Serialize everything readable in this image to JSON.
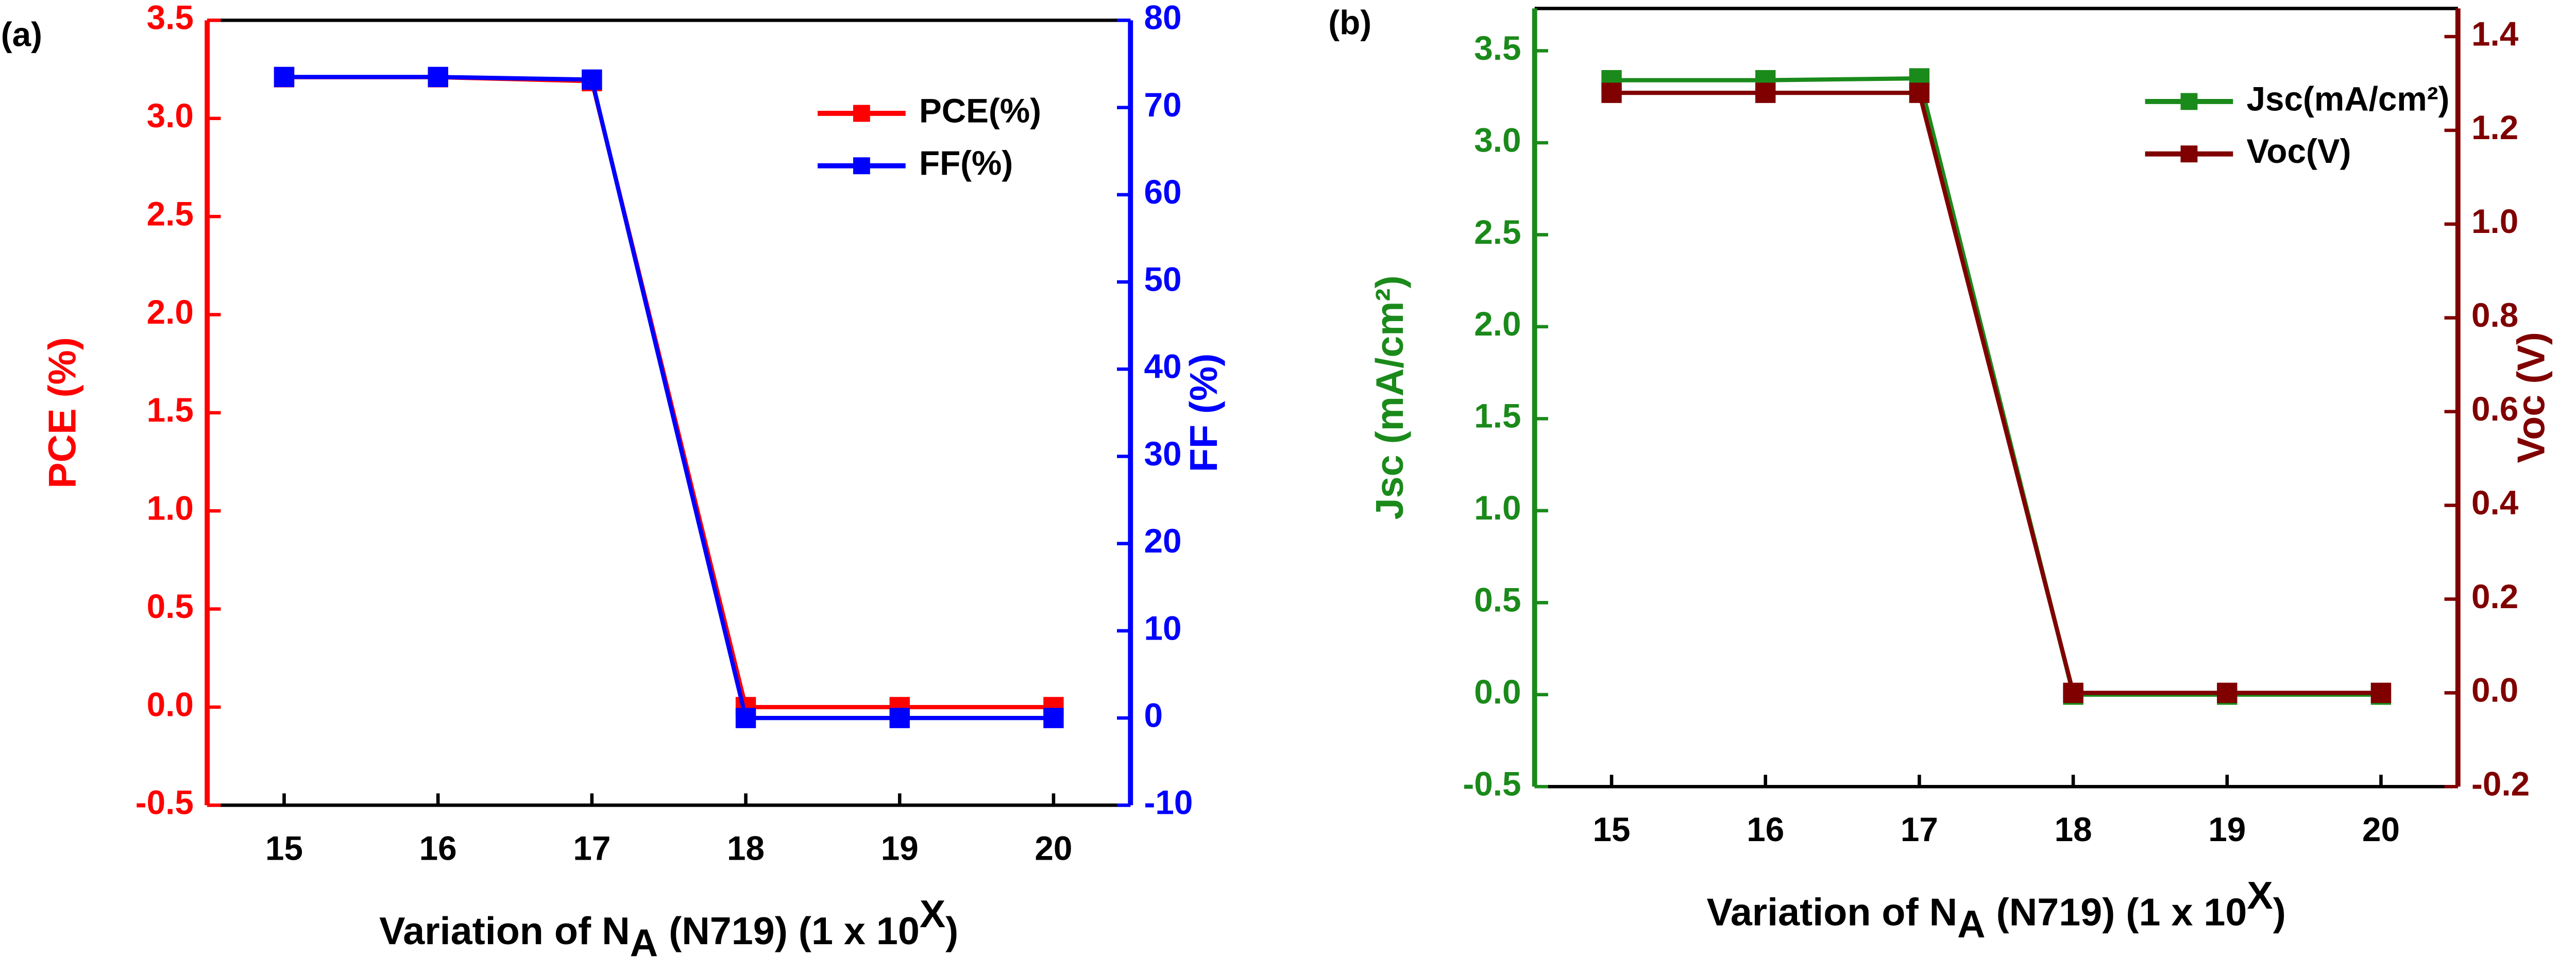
{
  "chart_data": [
    {
      "type": "line",
      "panel_label": "(a)",
      "xlabel": {
        "main": "Variation of N",
        "sub": "A",
        "rest": " (N719) (1 x 10",
        "sup": "X",
        "end": ")"
      },
      "ylabel": "PCE (%)",
      "y2label": "FF (%)",
      "x": [
        15,
        16,
        17,
        18,
        19,
        20
      ],
      "xlim": [
        14.5,
        20.5
      ],
      "xticks": [
        15,
        16,
        17,
        18,
        19,
        20
      ],
      "ylim": [
        -0.5,
        3.5
      ],
      "yticks": [
        -0.5,
        {
          "value": 0,
          "label": "0.0"
        },
        0.5,
        {
          "value": 1,
          "label": "1.0"
        },
        1.5,
        {
          "value": 2,
          "label": "2.0"
        },
        2.5,
        {
          "value": 3,
          "label": "3.0"
        },
        3.5
      ],
      "y2lim": [
        -10,
        80
      ],
      "y2ticks": [
        -10,
        0,
        10,
        20,
        30,
        40,
        50,
        60,
        70,
        80
      ],
      "legend": "upper right",
      "series": [
        {
          "name": "PCE(%)",
          "color": "#ff0000",
          "values": [
            3.21,
            3.21,
            3.19,
            0,
            0,
            0
          ]
        },
        {
          "name": "FF(%)",
          "color": "#0000ff",
          "axis": "y2",
          "values": [
            73.5,
            73.5,
            73.2,
            0,
            0,
            0
          ]
        }
      ]
    },
    {
      "type": "line",
      "panel_label": "(b)",
      "xlabel": {
        "main": "Variation of N",
        "sub": "A",
        "rest": " (N719) (1 x 10",
        "sup": "X",
        "end": ")"
      },
      "ylabel": "Jsc (mA/cm²)",
      "y2label": "Voc (V)",
      "x": [
        15,
        16,
        17,
        18,
        19,
        20
      ],
      "xlim": [
        14.5,
        20.5
      ],
      "xticks": [
        15,
        16,
        17,
        18,
        19,
        20
      ],
      "ylim": [
        -0.5,
        3.73
      ],
      "yticks": [
        -0.5,
        {
          "value": 0,
          "label": "0.0"
        },
        0.5,
        {
          "value": 1,
          "label": "1.0"
        },
        1.5,
        {
          "value": 2,
          "label": "2.0"
        },
        2.5,
        {
          "value": 3,
          "label": "3.0"
        },
        3.5
      ],
      "y2lim": [
        -0.2,
        1.46
      ],
      "y2ticks": [
        -0.2,
        {
          "value": 0,
          "label": "0.0"
        },
        0.2,
        0.4,
        0.6,
        0.8,
        {
          "value": 1,
          "label": "1.0"
        },
        1.2,
        1.4
      ],
      "legend": "upper right",
      "series": [
        {
          "name": "Jsc(mA/cm²)",
          "color": "#1a8a1a",
          "values": [
            3.34,
            3.34,
            3.35,
            0,
            0,
            0
          ]
        },
        {
          "name": "Voc(V)",
          "color": "#800000",
          "axis": "y2",
          "values": [
            1.28,
            1.28,
            1.28,
            0,
            0,
            0
          ]
        }
      ]
    }
  ]
}
